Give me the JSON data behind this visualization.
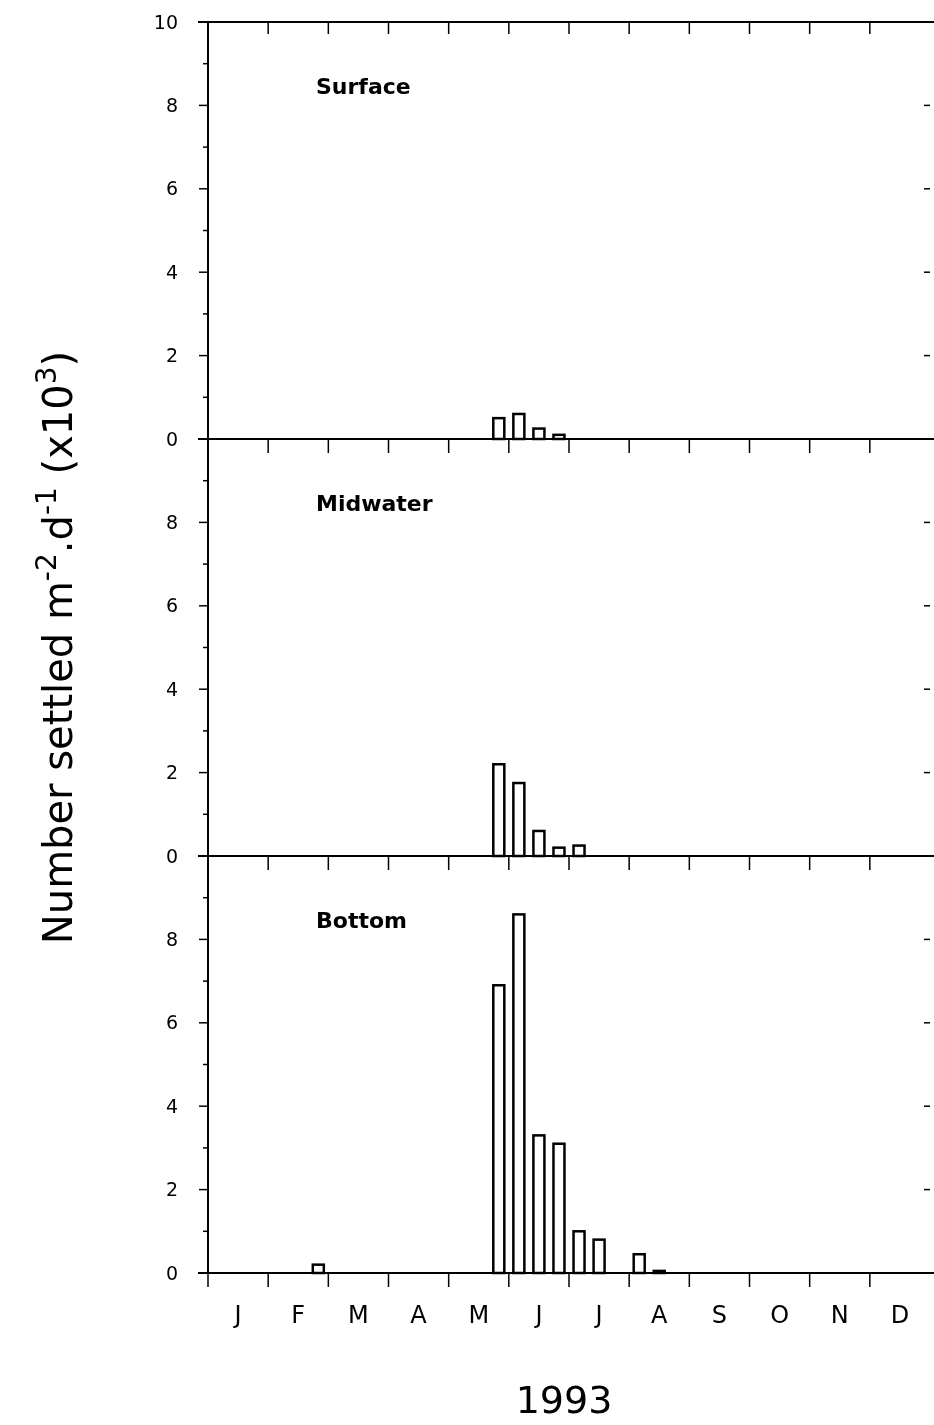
{
  "chart_data": [
    {
      "type": "bar",
      "title": "Surface",
      "categories": [
        null,
        null,
        null,
        null,
        null,
        null,
        null,
        null,
        null,
        null,
        null,
        null,
        null,
        null,
        null,
        null,
        null,
        null,
        null,
        null,
        null,
        null,
        null,
        null,
        null,
        null,
        null,
        null,
        null,
        null,
        null,
        null,
        null,
        null,
        null,
        null
      ],
      "values": [
        null,
        null,
        null,
        null,
        null,
        null,
        null,
        null,
        null,
        null,
        null,
        null,
        null,
        null,
        0.5,
        0.6,
        0.25,
        0.1,
        null,
        null,
        null,
        null,
        null,
        null,
        null,
        null,
        null,
        null,
        null,
        null,
        null,
        null,
        null,
        null,
        null,
        null
      ],
      "color": "#ffffff",
      "ylim": [
        0,
        10
      ],
      "yticks": [
        0,
        {
          "value": 1,
          "label": null
        },
        2,
        {
          "value": 3,
          "label": null
        },
        4,
        {
          "value": 5,
          "label": null
        },
        6,
        {
          "value": 7,
          "label": null
        },
        8,
        {
          "value": 9,
          "label": null
        },
        10
      ],
      "tick_labels": "y"
    },
    {
      "type": "bar",
      "title": "Midwater",
      "ylabel": "Number settled m$^{-2}$.d$^{-1}$ (x10$^{3}$)",
      "categories": [
        null,
        null,
        null,
        null,
        null,
        null,
        null,
        null,
        null,
        null,
        null,
        null,
        null,
        null,
        null,
        null,
        null,
        null,
        null,
        null,
        null,
        null,
        null,
        null,
        null,
        null,
        null,
        null,
        null,
        null,
        null,
        null,
        null,
        null,
        null,
        null
      ],
      "values": [
        null,
        null,
        null,
        null,
        null,
        null,
        null,
        null,
        null,
        null,
        null,
        null,
        null,
        null,
        2.2,
        1.75,
        0.6,
        0.2,
        0.25,
        null,
        null,
        null,
        null,
        null,
        null,
        null,
        null,
        null,
        null,
        null,
        null,
        null,
        null,
        null,
        null,
        null
      ],
      "color": "#ffffff",
      "ylim": [
        0,
        10
      ],
      "yticks": [
        0,
        {
          "value": 1,
          "label": null
        },
        2,
        {
          "value": 3,
          "label": null
        },
        4,
        {
          "value": 5,
          "label": null
        },
        6,
        {
          "value": 7,
          "label": null
        },
        8,
        {
          "value": 9,
          "label": null
        },
        {
          "value": 10,
          "label": null
        }
      ],
      "tick_labels": "y"
    },
    {
      "type": "bar",
      "title": "Bottom",
      "xlabel": "1993",
      "categories": [
        null,
        "J",
        null,
        null,
        "F",
        null,
        null,
        "M",
        null,
        null,
        "A",
        null,
        null,
        "M",
        null,
        null,
        "J",
        null,
        null,
        "J",
        null,
        null,
        "A",
        null,
        null,
        "S",
        null,
        null,
        "O",
        null,
        null,
        "N",
        null,
        null,
        "D",
        null
      ],
      "values": [
        null,
        null,
        null,
        null,
        null,
        0.2,
        null,
        null,
        null,
        null,
        null,
        null,
        null,
        null,
        6.9,
        8.6,
        3.3,
        3.1,
        1.0,
        0.8,
        null,
        0.45,
        0.05,
        null,
        null,
        null,
        null,
        null,
        null,
        null,
        null,
        null,
        null,
        null,
        null,
        null
      ],
      "color": "#ffffff",
      "ylim": [
        0,
        10
      ],
      "yticks": [
        0,
        {
          "value": 1,
          "label": null
        },
        2,
        {
          "value": 3,
          "label": null
        },
        4,
        {
          "value": 5,
          "label": null
        },
        6,
        {
          "value": 7,
          "label": null
        },
        8,
        {
          "value": 9,
          "label": null
        },
        {
          "value": 10,
          "label": null
        }
      ]
    }
  ]
}
